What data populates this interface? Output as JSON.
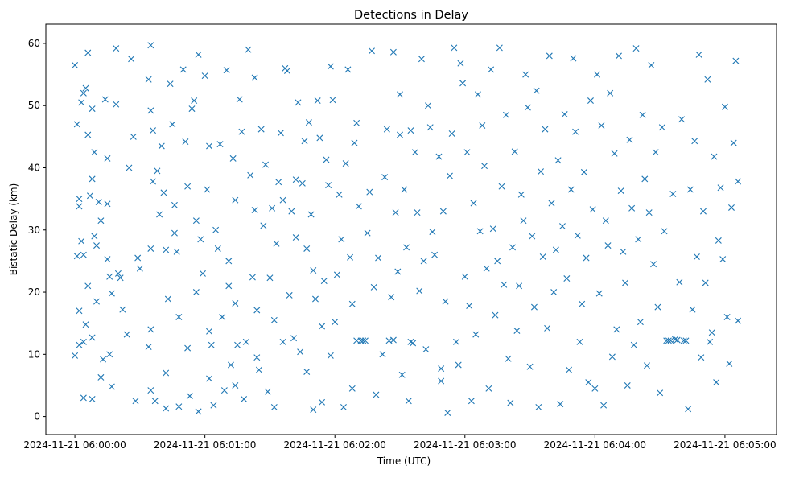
{
  "chart_data": {
    "type": "scatter",
    "title": "Detections in Delay",
    "xlabel": "Time (UTC)",
    "ylabel": "Bistatic Delay (km)",
    "x_units": "seconds after 2024-11-21 06:00:00",
    "xlim": [
      -13.4,
      323.8
    ],
    "ylim": [
      -2.9,
      63.1
    ],
    "grid": false,
    "marker": "x",
    "color": "#1f77b4",
    "xticks": [
      {
        "value": 0,
        "label": "2024-11-21 06:00:00"
      },
      {
        "value": 60,
        "label": "2024-11-21 06:01:00"
      },
      {
        "value": 120,
        "label": "2024-11-21 06:02:00"
      },
      {
        "value": 180,
        "label": "2024-11-21 06:03:00"
      },
      {
        "value": 240,
        "label": "2024-11-21 06:04:00"
      },
      {
        "value": 300,
        "label": "2024-11-21 06:05:00"
      }
    ],
    "yticks": [
      {
        "value": 0,
        "label": "0"
      },
      {
        "value": 10,
        "label": "10"
      },
      {
        "value": 20,
        "label": "20"
      },
      {
        "value": 30,
        "label": "30"
      },
      {
        "value": 40,
        "label": "40"
      },
      {
        "value": 50,
        "label": "50"
      },
      {
        "value": 60,
        "label": "60"
      }
    ],
    "points": [
      [
        0,
        56.5
      ],
      [
        1,
        47
      ],
      [
        2,
        35
      ],
      [
        2,
        33.8
      ],
      [
        1,
        25.8
      ],
      [
        2,
        17
      ],
      [
        0,
        9.8
      ],
      [
        2,
        11.5
      ],
      [
        3,
        50.5
      ],
      [
        3,
        28.2
      ],
      [
        4,
        26
      ],
      [
        4,
        52
      ],
      [
        5,
        52.8
      ],
      [
        5,
        14.8
      ],
      [
        4,
        12
      ],
      [
        6,
        58.5
      ],
      [
        6,
        45.3
      ],
      [
        7,
        35.5
      ],
      [
        6,
        21
      ],
      [
        4,
        3
      ],
      [
        8,
        49.5
      ],
      [
        8,
        38.2
      ],
      [
        9,
        42.5
      ],
      [
        9,
        29
      ],
      [
        10,
        27.5
      ],
      [
        10,
        18.5
      ],
      [
        8,
        12.7
      ],
      [
        8,
        2.8
      ],
      [
        11,
        34.5
      ],
      [
        12,
        31.5
      ],
      [
        13,
        9.2
      ],
      [
        12,
        6.3
      ],
      [
        14,
        51
      ],
      [
        15,
        41.5
      ],
      [
        15,
        34.2
      ],
      [
        15,
        25.3
      ],
      [
        16,
        22.5
      ],
      [
        16,
        10
      ],
      [
        17,
        19.8
      ],
      [
        17,
        4.8
      ],
      [
        19,
        59.2
      ],
      [
        19,
        50.2
      ],
      [
        20,
        23
      ],
      [
        21,
        22.3
      ],
      [
        22,
        17.2
      ],
      [
        24,
        13.2
      ],
      [
        25,
        40
      ],
      [
        26,
        57.5
      ],
      [
        27,
        45
      ],
      [
        28,
        2.5
      ],
      [
        29,
        25.5
      ],
      [
        30,
        23.8
      ],
      [
        34,
        54.2
      ],
      [
        35,
        59.7
      ],
      [
        35,
        49.2
      ],
      [
        36,
        46
      ],
      [
        36,
        37.8
      ],
      [
        35,
        27
      ],
      [
        35,
        14
      ],
      [
        34,
        11.2
      ],
      [
        35,
        4.2
      ],
      [
        37,
        2.5
      ],
      [
        38,
        39.5
      ],
      [
        39,
        32.5
      ],
      [
        40,
        43.5
      ],
      [
        41,
        36
      ],
      [
        42,
        26.8
      ],
      [
        42,
        7
      ],
      [
        42,
        1.3
      ],
      [
        43,
        18.9
      ],
      [
        44,
        53.5
      ],
      [
        45,
        47
      ],
      [
        46,
        34
      ],
      [
        46,
        29.5
      ],
      [
        47,
        26.5
      ],
      [
        48,
        16
      ],
      [
        48,
        1.6
      ],
      [
        50,
        55.8
      ],
      [
        51,
        44.2
      ],
      [
        52,
        37
      ],
      [
        52,
        11
      ],
      [
        53,
        3.3
      ],
      [
        54,
        49.5
      ],
      [
        55,
        50.8
      ],
      [
        56,
        31.5
      ],
      [
        56,
        20
      ],
      [
        57,
        58.2
      ],
      [
        57,
        0.8
      ],
      [
        58,
        28.5
      ],
      [
        59,
        23
      ],
      [
        60,
        54.8
      ],
      [
        61,
        36.5
      ],
      [
        62,
        43.5
      ],
      [
        62,
        13.7
      ],
      [
        62,
        6.1
      ],
      [
        63,
        11.5
      ],
      [
        64,
        1.8
      ],
      [
        65,
        30
      ],
      [
        66,
        27
      ],
      [
        67,
        43.8
      ],
      [
        68,
        16
      ],
      [
        69,
        4.2
      ],
      [
        70,
        55.7
      ],
      [
        71,
        25
      ],
      [
        71,
        21
      ],
      [
        72,
        8.3
      ],
      [
        73,
        41.5
      ],
      [
        74,
        34.8
      ],
      [
        74,
        18.2
      ],
      [
        74,
        5
      ],
      [
        75,
        11.5
      ],
      [
        76,
        51
      ],
      [
        77,
        45.8
      ],
      [
        78,
        2.8
      ],
      [
        79,
        12
      ],
      [
        80,
        59
      ],
      [
        81,
        38.8
      ],
      [
        82,
        22.4
      ],
      [
        83,
        54.5
      ],
      [
        83,
        33.2
      ],
      [
        84,
        17.1
      ],
      [
        84,
        9.5
      ],
      [
        85,
        7.5
      ],
      [
        86,
        46.2
      ],
      [
        87,
        30.7
      ],
      [
        88,
        40.5
      ],
      [
        89,
        4
      ],
      [
        90,
        22.3
      ],
      [
        91,
        33.5
      ],
      [
        92,
        15.5
      ],
      [
        92,
        1.5
      ],
      [
        93,
        27.8
      ],
      [
        94,
        37.7
      ],
      [
        95,
        45.6
      ],
      [
        96,
        34.8
      ],
      [
        96,
        12
      ],
      [
        97,
        56
      ],
      [
        98,
        55.6
      ],
      [
        99,
        19.5
      ],
      [
        100,
        33
      ],
      [
        101,
        12.6
      ],
      [
        102,
        38.1
      ],
      [
        102,
        28.8
      ],
      [
        103,
        50.5
      ],
      [
        104,
        10.4
      ],
      [
        105,
        37.5
      ],
      [
        106,
        44.3
      ],
      [
        107,
        27
      ],
      [
        107,
        7.2
      ],
      [
        108,
        47.3
      ],
      [
        109,
        32.5
      ],
      [
        110,
        23.5
      ],
      [
        110,
        1.1
      ],
      [
        111,
        18.9
      ],
      [
        112,
        50.8
      ],
      [
        113,
        44.8
      ],
      [
        114,
        14.5
      ],
      [
        114,
        2.3
      ],
      [
        115,
        21.8
      ],
      [
        116,
        41.3
      ],
      [
        117,
        37.2
      ],
      [
        118,
        56.3
      ],
      [
        118,
        9.8
      ],
      [
        119,
        50.9
      ],
      [
        120,
        15.2
      ],
      [
        121,
        22.8
      ],
      [
        122,
        35.7
      ],
      [
        123,
        28.5
      ],
      [
        124,
        1.5
      ],
      [
        125,
        40.7
      ],
      [
        126,
        55.8
      ],
      [
        127,
        25.6
      ],
      [
        128,
        18.1
      ],
      [
        128,
        4.5
      ],
      [
        129,
        44
      ],
      [
        130,
        47.2
      ],
      [
        130,
        12.2
      ],
      [
        131,
        33.8
      ],
      [
        132,
        12.2
      ],
      [
        133,
        12.2
      ],
      [
        134,
        12.2
      ],
      [
        135,
        29.5
      ],
      [
        136,
        36.1
      ],
      [
        137,
        58.8
      ],
      [
        138,
        20.8
      ],
      [
        139,
        3.5
      ],
      [
        140,
        25.5
      ],
      [
        142,
        10
      ],
      [
        143,
        38.5
      ],
      [
        144,
        46.2
      ],
      [
        145,
        12.2
      ],
      [
        146,
        19.2
      ],
      [
        147,
        12.3
      ],
      [
        147,
        58.6
      ],
      [
        148,
        32.8
      ],
      [
        149,
        23.3
      ],
      [
        150,
        51.8
      ],
      [
        150,
        45.3
      ],
      [
        151,
        6.7
      ],
      [
        152,
        36.5
      ],
      [
        153,
        27.2
      ],
      [
        154,
        2.5
      ],
      [
        155,
        46
      ],
      [
        155,
        12
      ],
      [
        156,
        11.8
      ],
      [
        157,
        42.5
      ],
      [
        158,
        32.8
      ],
      [
        159,
        20.2
      ],
      [
        160,
        57.5
      ],
      [
        161,
        25
      ],
      [
        162,
        10.8
      ],
      [
        163,
        50
      ],
      [
        164,
        46.5
      ],
      [
        165,
        29.7
      ],
      [
        166,
        26
      ],
      [
        168,
        41.8
      ],
      [
        169,
        7.7
      ],
      [
        169,
        5.7
      ],
      [
        170,
        33
      ],
      [
        171,
        18.5
      ],
      [
        172,
        0.6
      ],
      [
        173,
        38.7
      ],
      [
        174,
        45.5
      ],
      [
        175,
        59.3
      ],
      [
        176,
        12
      ],
      [
        177,
        8.3
      ],
      [
        178,
        56.8
      ],
      [
        179,
        53.6
      ],
      [
        180,
        22.5
      ],
      [
        181,
        42.5
      ],
      [
        182,
        17.8
      ],
      [
        183,
        2.5
      ],
      [
        184,
        34.3
      ],
      [
        185,
        13.2
      ],
      [
        186,
        51.8
      ],
      [
        187,
        29.8
      ],
      [
        188,
        46.8
      ],
      [
        189,
        40.3
      ],
      [
        190,
        23.8
      ],
      [
        191,
        4.5
      ],
      [
        192,
        55.8
      ],
      [
        193,
        30.2
      ],
      [
        194,
        16.3
      ],
      [
        195,
        25
      ],
      [
        196,
        59.3
      ],
      [
        197,
        37
      ],
      [
        198,
        21.2
      ],
      [
        199,
        48.5
      ],
      [
        200,
        9.3
      ],
      [
        201,
        2.2
      ],
      [
        202,
        27.2
      ],
      [
        203,
        42.6
      ],
      [
        204,
        13.8
      ],
      [
        205,
        21
      ],
      [
        206,
        35.7
      ],
      [
        207,
        31.5
      ],
      [
        208,
        55
      ],
      [
        209,
        49.7
      ],
      [
        210,
        8
      ],
      [
        211,
        29
      ],
      [
        212,
        17.6
      ],
      [
        213,
        52.4
      ],
      [
        214,
        1.5
      ],
      [
        215,
        39.4
      ],
      [
        216,
        25.7
      ],
      [
        217,
        46.2
      ],
      [
        218,
        14.2
      ],
      [
        219,
        58
      ],
      [
        220,
        34.3
      ],
      [
        221,
        20
      ],
      [
        222,
        26.8
      ],
      [
        223,
        41.2
      ],
      [
        224,
        2
      ],
      [
        225,
        30.6
      ],
      [
        226,
        48.6
      ],
      [
        227,
        22.2
      ],
      [
        228,
        7.5
      ],
      [
        229,
        36.5
      ],
      [
        230,
        57.6
      ],
      [
        231,
        45.8
      ],
      [
        232,
        29.1
      ],
      [
        233,
        12
      ],
      [
        234,
        18.1
      ],
      [
        235,
        39.3
      ],
      [
        236,
        25.5
      ],
      [
        237,
        5.5
      ],
      [
        238,
        50.8
      ],
      [
        239,
        33.3
      ],
      [
        240,
        4.5
      ],
      [
        241,
        55
      ],
      [
        242,
        19.8
      ],
      [
        243,
        46.8
      ],
      [
        244,
        1.8
      ],
      [
        245,
        31.5
      ],
      [
        246,
        27.5
      ],
      [
        247,
        52
      ],
      [
        248,
        9.6
      ],
      [
        249,
        42.3
      ],
      [
        250,
        14
      ],
      [
        251,
        58
      ],
      [
        252,
        36.3
      ],
      [
        253,
        26.5
      ],
      [
        254,
        21.5
      ],
      [
        255,
        5
      ],
      [
        256,
        44.5
      ],
      [
        257,
        33.5
      ],
      [
        258,
        11.5
      ],
      [
        259,
        59.2
      ],
      [
        260,
        28.5
      ],
      [
        261,
        15.2
      ],
      [
        262,
        48.5
      ],
      [
        263,
        38.2
      ],
      [
        264,
        8.2
      ],
      [
        265,
        32.8
      ],
      [
        266,
        56.5
      ],
      [
        267,
        24.5
      ],
      [
        268,
        42.5
      ],
      [
        269,
        17.6
      ],
      [
        270,
        3.8
      ],
      [
        271,
        46.5
      ],
      [
        272,
        29.8
      ],
      [
        273,
        12.2
      ],
      [
        274,
        12.2
      ],
      [
        275,
        12.2
      ],
      [
        276,
        35.8
      ],
      [
        277,
        12.4
      ],
      [
        278,
        12.3
      ],
      [
        279,
        21.6
      ],
      [
        280,
        47.8
      ],
      [
        281,
        12.2
      ],
      [
        282,
        12.2
      ],
      [
        283,
        1.2
      ],
      [
        284,
        36.5
      ],
      [
        285,
        17.2
      ],
      [
        286,
        44.3
      ],
      [
        287,
        25.7
      ],
      [
        288,
        58.2
      ],
      [
        289,
        9.5
      ],
      [
        290,
        33
      ],
      [
        291,
        21.5
      ],
      [
        292,
        54.2
      ],
      [
        293,
        12
      ],
      [
        294,
        13.5
      ],
      [
        295,
        41.8
      ],
      [
        296,
        5.5
      ],
      [
        297,
        28.3
      ],
      [
        298,
        36.8
      ],
      [
        299,
        25.3
      ],
      [
        300,
        49.8
      ],
      [
        301,
        16
      ],
      [
        302,
        8.5
      ],
      [
        303,
        33.6
      ],
      [
        304,
        44
      ],
      [
        305,
        57.2
      ],
      [
        306,
        37.8
      ],
      [
        306,
        15.4
      ]
    ]
  }
}
